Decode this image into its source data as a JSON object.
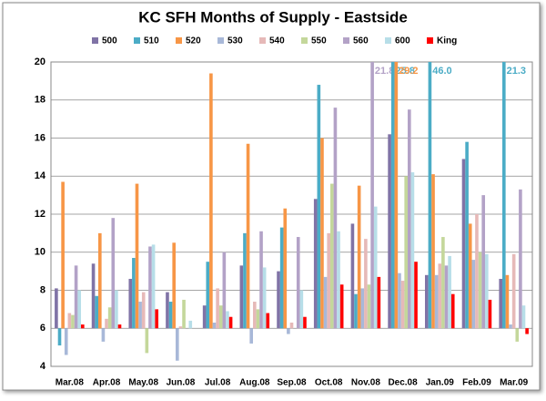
{
  "chart_data": {
    "type": "bar",
    "title": "KC SFH Months of Supply - Eastside",
    "categories": [
      "Mar.08",
      "Apr.08",
      "May.08",
      "Jun.08",
      "Jul.08",
      "Aug.08",
      "Sep.08",
      "Oct.08",
      "Nov.08",
      "Dec.08",
      "Jan.09",
      "Feb.09",
      "Mar.09"
    ],
    "series": [
      {
        "name": "500",
        "color": "#8073a6",
        "values": [
          8.1,
          9.4,
          8.6,
          7.9,
          7.2,
          9.3,
          9.0,
          12.8,
          11.5,
          16.2,
          8.8,
          14.9,
          8.6
        ]
      },
      {
        "name": "510",
        "color": "#4bacc6",
        "values": [
          5.1,
          7.7,
          9.7,
          7.4,
          9.5,
          11.0,
          11.3,
          18.8,
          7.8,
          25.8,
          46.0,
          15.8,
          21.3
        ],
        "value_labels": [
          null,
          null,
          null,
          null,
          null,
          null,
          null,
          null,
          null,
          "25.8",
          "46.0",
          null,
          "21.3"
        ]
      },
      {
        "name": "520",
        "color": "#f79646",
        "values": [
          13.7,
          11.0,
          13.6,
          10.5,
          19.4,
          15.7,
          12.3,
          16.0,
          13.5,
          29.2,
          14.1,
          11.5,
          8.8
        ],
        "value_labels": [
          null,
          null,
          null,
          null,
          null,
          null,
          null,
          null,
          null,
          "29.2",
          null,
          null,
          null
        ]
      },
      {
        "name": "530",
        "color": "#a8b8d8",
        "values": [
          4.6,
          5.3,
          7.4,
          4.3,
          6.3,
          5.2,
          5.7,
          8.7,
          8.1,
          8.9,
          8.8,
          9.6,
          6.2
        ]
      },
      {
        "name": "540",
        "color": "#e6b9b8",
        "values": [
          6.8,
          6.5,
          7.9,
          6.1,
          8.1,
          7.4,
          6.3,
          11.0,
          10.7,
          8.5,
          9.4,
          12.0,
          9.9
        ]
      },
      {
        "name": "550",
        "color": "#c4d79b",
        "values": [
          6.7,
          7.1,
          4.7,
          7.5,
          7.2,
          7.0,
          6.0,
          13.6,
          8.3,
          14.0,
          10.8,
          10.0,
          5.3
        ]
      },
      {
        "name": "560",
        "color": "#b3a2c7",
        "values": [
          9.3,
          11.8,
          10.3,
          6.0,
          10.0,
          11.1,
          10.8,
          17.6,
          21.8,
          17.5,
          9.3,
          13.0,
          13.3
        ],
        "value_labels": [
          null,
          null,
          null,
          null,
          null,
          null,
          null,
          null,
          "21.8",
          null,
          null,
          null,
          null
        ]
      },
      {
        "name": "600",
        "color": "#b7dee8",
        "values": [
          8.0,
          8.0,
          10.4,
          6.4,
          6.9,
          9.2,
          8.0,
          11.1,
          12.4,
          14.2,
          9.8,
          9.9,
          7.2
        ]
      },
      {
        "name": "King",
        "color": "#ff0000",
        "values": [
          6.2,
          6.2,
          7.0,
          6.0,
          6.6,
          6.8,
          6.6,
          8.3,
          8.7,
          9.5,
          7.8,
          7.5,
          5.7
        ]
      }
    ],
    "ylim": [
      4,
      20
    ],
    "yticks": [
      4,
      6,
      8,
      10,
      12,
      14,
      16,
      18,
      20
    ],
    "x_axis_crosses": 6,
    "grid": true,
    "legend": "top"
  }
}
